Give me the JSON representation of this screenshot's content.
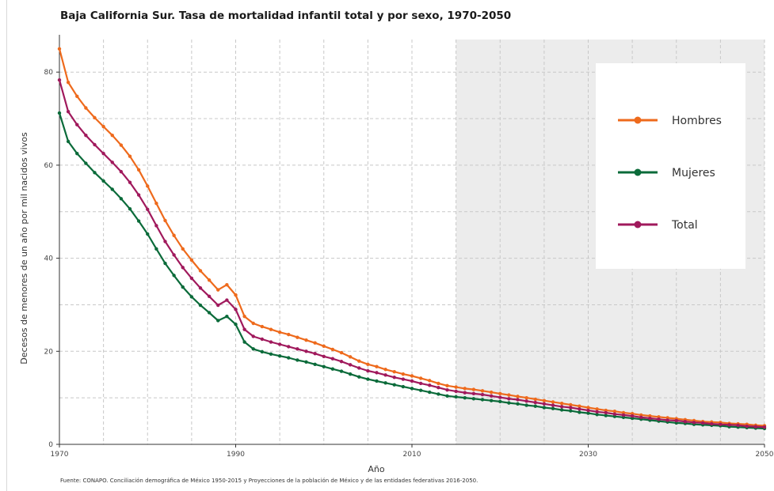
{
  "chart_data": {
    "type": "line",
    "title": "Baja California Sur.  Tasa de mortalidad infantil total y por sexo, 1970-2050",
    "xlabel": "Año",
    "ylabel": "Decesos de menores de un año por mil nacidos vivos",
    "source": "Fuente: CONAPO. Conciliación demográfica de México 1950-2015 y Proyecciones de la población de México y de las entidades federativas 2016-2050.",
    "xlim": [
      1970,
      2050
    ],
    "ylim": [
      0,
      87
    ],
    "xticks": [
      1970,
      1990,
      2010,
      2030,
      2050
    ],
    "yticks": [
      0,
      20,
      40,
      60,
      80
    ],
    "grid": true,
    "projection_shading": {
      "from": 2015,
      "to": 2050
    },
    "legend_position": "top-right",
    "x": [
      1970,
      1971,
      1972,
      1973,
      1974,
      1975,
      1976,
      1977,
      1978,
      1979,
      1980,
      1981,
      1982,
      1983,
      1984,
      1985,
      1986,
      1987,
      1988,
      1989,
      1990,
      1991,
      1992,
      1993,
      1994,
      1995,
      1996,
      1997,
      1998,
      1999,
      2000,
      2001,
      2002,
      2003,
      2004,
      2005,
      2006,
      2007,
      2008,
      2009,
      2010,
      2011,
      2012,
      2013,
      2014,
      2015,
      2016,
      2017,
      2018,
      2019,
      2020,
      2021,
      2022,
      2023,
      2024,
      2025,
      2026,
      2027,
      2028,
      2029,
      2030,
      2031,
      2032,
      2033,
      2034,
      2035,
      2036,
      2037,
      2038,
      2039,
      2040,
      2041,
      2042,
      2043,
      2044,
      2045,
      2046,
      2047,
      2048,
      2049,
      2050
    ],
    "series": [
      {
        "name": "Hombres",
        "color": "#ee6a1c",
        "values": [
          85.0,
          77.8,
          74.8,
          72.3,
          70.2,
          68.3,
          66.4,
          64.3,
          61.9,
          59.0,
          55.5,
          51.8,
          48.1,
          44.9,
          42.0,
          39.6,
          37.3,
          35.3,
          33.2,
          34.3,
          32.1,
          27.5,
          26.0,
          25.3,
          24.7,
          24.1,
          23.6,
          23.0,
          22.4,
          21.8,
          21.1,
          20.4,
          19.7,
          18.8,
          17.9,
          17.2,
          16.7,
          16.1,
          15.6,
          15.1,
          14.7,
          14.2,
          13.7,
          13.1,
          12.6,
          12.3,
          12.0,
          11.8,
          11.5,
          11.2,
          10.9,
          10.6,
          10.3,
          10.0,
          9.7,
          9.4,
          9.1,
          8.8,
          8.5,
          8.2,
          7.9,
          7.6,
          7.3,
          7.1,
          6.8,
          6.6,
          6.3,
          6.1,
          5.9,
          5.7,
          5.5,
          5.3,
          5.1,
          4.9,
          4.8,
          4.7,
          4.5,
          4.4,
          4.3,
          4.1,
          4.0
        ]
      },
      {
        "name": "Mujeres",
        "color": "#0b6b3a",
        "values": [
          71.2,
          65.1,
          62.5,
          60.4,
          58.4,
          56.6,
          54.8,
          52.8,
          50.6,
          48.0,
          45.2,
          42.0,
          38.9,
          36.3,
          33.8,
          31.7,
          29.9,
          28.3,
          26.6,
          27.5,
          25.8,
          22.0,
          20.5,
          19.9,
          19.4,
          19.0,
          18.6,
          18.1,
          17.7,
          17.2,
          16.7,
          16.2,
          15.7,
          15.1,
          14.5,
          14.0,
          13.6,
          13.2,
          12.8,
          12.4,
          12.0,
          11.6,
          11.2,
          10.8,
          10.4,
          10.2,
          10.0,
          9.8,
          9.6,
          9.4,
          9.2,
          8.9,
          8.7,
          8.4,
          8.2,
          7.9,
          7.7,
          7.4,
          7.2,
          6.9,
          6.7,
          6.4,
          6.2,
          6.0,
          5.8,
          5.6,
          5.4,
          5.2,
          5.0,
          4.8,
          4.6,
          4.5,
          4.3,
          4.2,
          4.1,
          4.0,
          3.8,
          3.7,
          3.6,
          3.5,
          3.4
        ]
      },
      {
        "name": "Total",
        "color": "#a0195c",
        "values": [
          78.3,
          71.5,
          68.7,
          66.4,
          64.4,
          62.5,
          60.6,
          58.6,
          56.3,
          53.6,
          50.5,
          47.0,
          43.6,
          40.7,
          38.0,
          35.7,
          33.6,
          31.8,
          29.9,
          31.0,
          29.0,
          24.7,
          23.2,
          22.6,
          22.0,
          21.5,
          21.0,
          20.5,
          20.0,
          19.5,
          18.9,
          18.4,
          17.8,
          17.1,
          16.4,
          15.8,
          15.4,
          14.9,
          14.4,
          14.0,
          13.6,
          13.1,
          12.7,
          12.2,
          11.7,
          11.4,
          11.1,
          10.9,
          10.7,
          10.4,
          10.1,
          9.8,
          9.6,
          9.3,
          9.0,
          8.7,
          8.4,
          8.1,
          7.9,
          7.6,
          7.3,
          7.0,
          6.8,
          6.5,
          6.3,
          6.1,
          5.8,
          5.6,
          5.4,
          5.2,
          5.1,
          4.9,
          4.7,
          4.6,
          4.4,
          4.3,
          4.2,
          4.1,
          3.9,
          3.8,
          3.7
        ]
      }
    ]
  }
}
